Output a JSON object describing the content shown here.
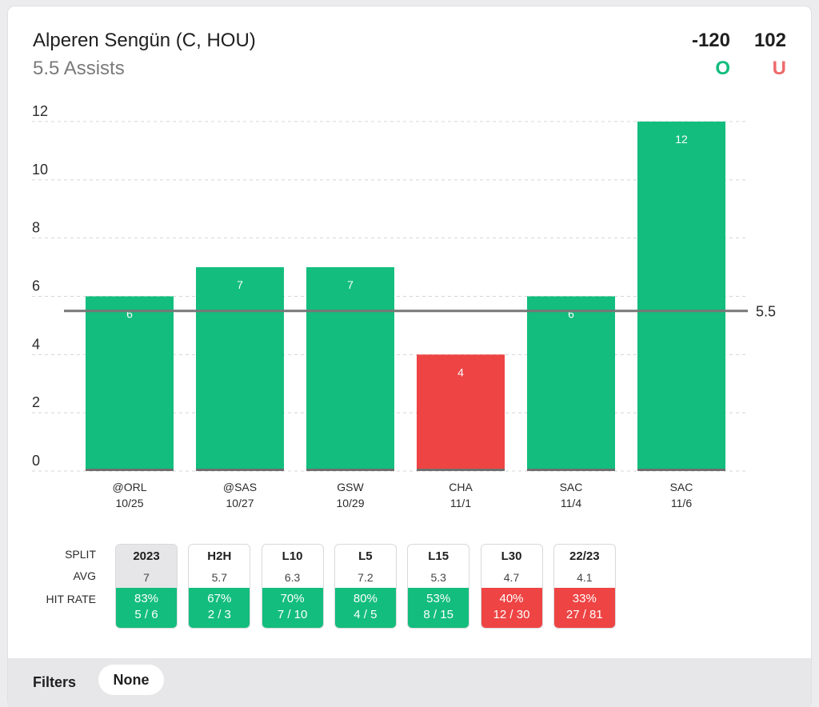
{
  "header": {
    "player": "Alperen Sengün (C, HOU)",
    "prop": "5.5 Assists",
    "over_odds": "-120",
    "under_odds": "102",
    "over_label": "O",
    "under_label": "U"
  },
  "colors": {
    "over": "#13bd7e",
    "under": "#ee4444",
    "line": "#777777"
  },
  "chart_data": {
    "type": "bar",
    "categories": [
      "@ORL",
      "@SAS",
      "GSW",
      "CHA",
      "SAC",
      "SAC"
    ],
    "dates": [
      "10/25",
      "10/27",
      "10/29",
      "11/1",
      "11/4",
      "11/6"
    ],
    "values": [
      6,
      7,
      7,
      4,
      6,
      12
    ],
    "line": 5.5,
    "line_label": "5.5",
    "yticks": [
      0,
      2,
      4,
      6,
      8,
      10,
      12
    ],
    "ylim": [
      0,
      12
    ],
    "grid": true
  },
  "splits": {
    "labels": {
      "split": "SPLIT",
      "avg": "AVG",
      "hit_rate": "HIT RATE"
    },
    "items": [
      {
        "name": "2023",
        "avg": "7",
        "pct": "83%",
        "ratio": "5 / 6",
        "color": "green",
        "active": true
      },
      {
        "name": "H2H",
        "avg": "5.7",
        "pct": "67%",
        "ratio": "2 / 3",
        "color": "green",
        "active": false
      },
      {
        "name": "L10",
        "avg": "6.3",
        "pct": "70%",
        "ratio": "7 / 10",
        "color": "green",
        "active": false
      },
      {
        "name": "L5",
        "avg": "7.2",
        "pct": "80%",
        "ratio": "4 / 5",
        "color": "green",
        "active": false
      },
      {
        "name": "L15",
        "avg": "5.3",
        "pct": "53%",
        "ratio": "8 / 15",
        "color": "green",
        "active": false
      },
      {
        "name": "L30",
        "avg": "4.7",
        "pct": "40%",
        "ratio": "12 / 30",
        "color": "red",
        "active": false
      },
      {
        "name": "22/23",
        "avg": "4.1",
        "pct": "33%",
        "ratio": "27 / 81",
        "color": "red",
        "active": false
      }
    ]
  },
  "filters": {
    "label": "Filters",
    "value": "None"
  }
}
